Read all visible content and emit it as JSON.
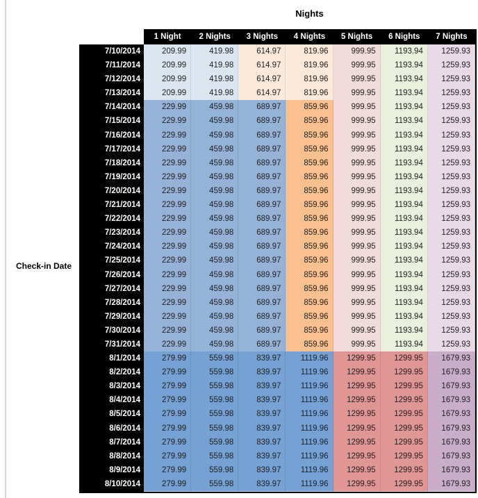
{
  "chart_data": {
    "type": "table",
    "title": "Nights",
    "row_axis_label": "Check-in Date",
    "columns": [
      "1 Night",
      "2 Nights",
      "3 Nights",
      "4 Nights",
      "5 Nights",
      "6 Nights",
      "7 Nights"
    ],
    "row_groups": [
      {
        "name": "early-july",
        "dates": [
          "7/10/2014",
          "7/11/2014",
          "7/12/2014",
          "7/13/2014"
        ],
        "values": [
          "209.99",
          "419.98",
          "614.97",
          "819.96",
          "999.95",
          "1193.94",
          "1259.93"
        ],
        "cell_colors": [
          "#dce6f1",
          "#dce6f1",
          "#fde9d9",
          "#fde9d9",
          "#f2dcdb",
          "#e9f0dc",
          "#e8dae6"
        ]
      },
      {
        "name": "mid-july",
        "dates": [
          "7/14/2014",
          "7/15/2014",
          "7/16/2014",
          "7/17/2014",
          "7/18/2014",
          "7/19/2014",
          "7/20/2014",
          "7/21/2014",
          "7/22/2014",
          "7/23/2014",
          "7/24/2014",
          "7/25/2014",
          "7/26/2014",
          "7/27/2014",
          "7/28/2014",
          "7/29/2014",
          "7/30/2014",
          "7/31/2014"
        ],
        "values": [
          "229.99",
          "459.98",
          "689.97",
          "859.96",
          "999.95",
          "1193.94",
          "1259.93"
        ],
        "cell_colors": [
          "#95b3d7",
          "#95b3d7",
          "#95b3d7",
          "#fac090",
          "#f2dcdb",
          "#e9f0dc",
          "#e8dae6"
        ]
      },
      {
        "name": "august",
        "dates": [
          "8/1/2014",
          "8/2/2014",
          "8/3/2014",
          "8/4/2014",
          "8/5/2014",
          "8/6/2014",
          "8/7/2014",
          "8/8/2014",
          "8/9/2014",
          "8/10/2014"
        ],
        "values": [
          "279.99",
          "559.98",
          "839.97",
          "1119.96",
          "1299.95",
          "1299.95",
          "1679.93"
        ],
        "cell_colors": [
          "#75a1d4",
          "#75a1d4",
          "#75a1d4",
          "#75a1d4",
          "#e09794",
          "#e09794",
          "#c9adcb"
        ]
      }
    ]
  },
  "colors": {
    "header_bg": "#000000",
    "header_text": "#ffffff",
    "value_text": "#1f1f1f",
    "page_bg": "#ffffff",
    "left_rule": "#d4d4d4",
    "table_border": "#000000"
  }
}
